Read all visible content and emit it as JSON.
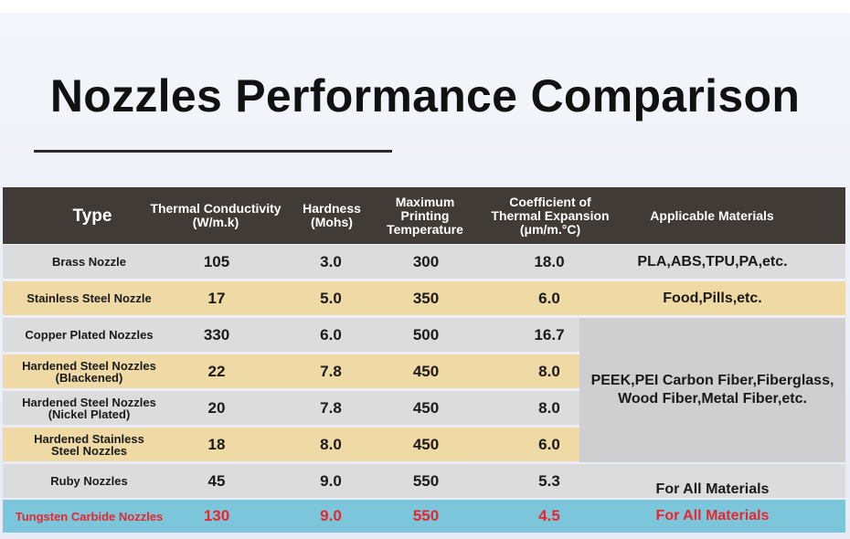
{
  "title": "Nozzles Performance Comparison",
  "header": {
    "type": "Type",
    "conductivity": "Thermal Conductivity\n(W/m.k)",
    "hardness": "Hardness\n(Mohs)",
    "temperature": "Maximum\nPrinting\nTemperature",
    "expansion": "Coefficient of\nThermal Expansion\n(μm/m.°C)",
    "materials": "Applicable Materials"
  },
  "rows": [
    {
      "name": "Brass Nozzle",
      "conductivity": "105",
      "hardness": "3.0",
      "temperature": "300",
      "expansion": "18.0",
      "materials": "PLA,ABS,TPU,PA,etc."
    },
    {
      "name": "Stainless Steel Nozzle",
      "conductivity": "17",
      "hardness": "5.0",
      "temperature": "350",
      "expansion": "6.0",
      "materials": "Food,Pills,etc."
    },
    {
      "name": "Copper Plated Nozzles",
      "conductivity": "330",
      "hardness": "6.0",
      "temperature": "500",
      "expansion": "16.7"
    },
    {
      "name": "Hardened Steel Nozzles\n(Blackened)",
      "conductivity": "22",
      "hardness": "7.8",
      "temperature": "450",
      "expansion": "8.0"
    },
    {
      "name": "Hardened Steel Nozzles\n(Nickel Plated)",
      "conductivity": "20",
      "hardness": "7.8",
      "temperature": "450",
      "expansion": "8.0"
    },
    {
      "name": "Hardened Stainless\nSteel Nozzles",
      "conductivity": "18",
      "hardness": "8.0",
      "temperature": "450",
      "expansion": "6.0"
    },
    {
      "name": "Ruby Nozzles",
      "conductivity": "45",
      "hardness": "9.0",
      "temperature": "550",
      "expansion": "5.3",
      "materials": "For All Materials"
    },
    {
      "name": "Tungsten Carbide Nozzles",
      "conductivity": "130",
      "hardness": "9.0",
      "temperature": "550",
      "expansion": "4.5",
      "materials": "For All Materials"
    }
  ],
  "merged_materials": {
    "line1": "PEEK,PEI Carbon Fiber,Fiberglass,",
    "line2": "Wood Fiber,Metal Fiber,etc."
  },
  "colors": {
    "header_bg": "#403b37",
    "row_gray": "#dcdcdc",
    "row_tan": "#efd9a5",
    "row_highlight": "#7cc6dc",
    "highlight_text": "#e8262c"
  }
}
